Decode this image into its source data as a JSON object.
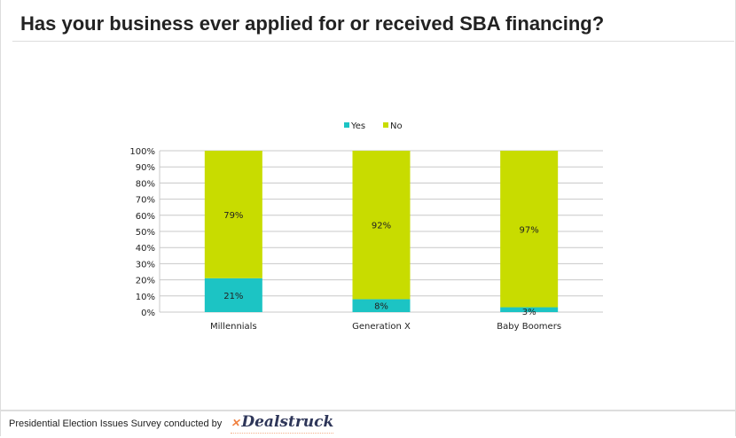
{
  "header": {
    "title": "Has your business ever applied for or received SBA financing?"
  },
  "footer": {
    "text": "Presidential Election Issues Survey conducted by",
    "logo": "Dealstruck",
    "logo_mark": "x"
  },
  "colors": {
    "yes": "#1cc4c4",
    "no": "#c8dc00",
    "grid": "#c8c8c8"
  },
  "chart_data": {
    "type": "bar",
    "stacked": true,
    "title": "",
    "categories": [
      "Millennials",
      "Generation X",
      "Baby Boomers"
    ],
    "series": [
      {
        "name": "Yes",
        "values": [
          21,
          8,
          3
        ]
      },
      {
        "name": "No",
        "values": [
          79,
          92,
          97
        ]
      }
    ],
    "labels": {
      "Yes": [
        "21%",
        "8%",
        "3%"
      ],
      "No": [
        "79%",
        "92%",
        "97%"
      ]
    },
    "ylim": [
      0,
      100
    ],
    "yticks": [
      "0%",
      "10%",
      "20%",
      "30%",
      "40%",
      "50%",
      "60%",
      "70%",
      "80%",
      "90%",
      "100%"
    ],
    "grid": true,
    "legend": "top-center",
    "xlabel": "",
    "ylabel": ""
  }
}
